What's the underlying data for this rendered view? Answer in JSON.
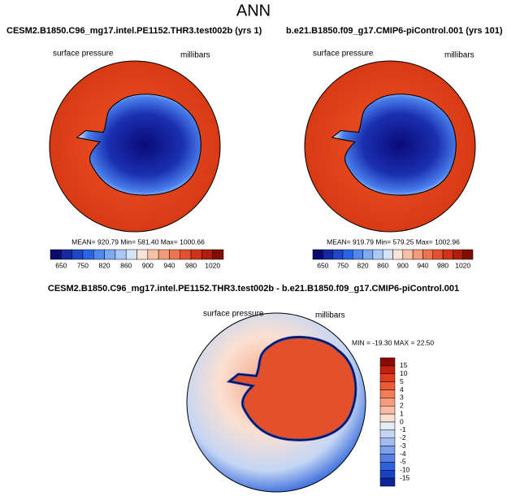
{
  "title": "ANN",
  "panels": [
    {
      "title": "CESM2.B1850.C96_mg17.intel.PE1152.THR3.test002b (yrs 1)",
      "variable": "surface pressure",
      "units": "millibars",
      "stats": "MEAN= 920.79 Min= 581.40 Max= 1000.66",
      "colorbar": {
        "labels": [
          650,
          750,
          820,
          860,
          900,
          940,
          980,
          1020
        ],
        "colors": [
          "#0a0a6e",
          "#1428a0",
          "#1e46c8",
          "#2a64e6",
          "#5088f0",
          "#7eaaf5",
          "#aac8f8",
          "#d6e4fa",
          "#fbe3d6",
          "#f8c0a6",
          "#f49a78",
          "#ee7450",
          "#e45030",
          "#cf3418",
          "#b01e0a",
          "#800c04"
        ]
      }
    },
    {
      "title": "b.e21.B1850.f09_g17.CMIP6-piControl.001 (yrs 101)",
      "variable": "surface pressure",
      "units": "millibars",
      "stats": "MEAN= 919.79 Min= 579.25 Max= 1002.96",
      "colorbar": {
        "labels": [
          650,
          750,
          820,
          860,
          900,
          940,
          980,
          1020
        ],
        "colors": [
          "#0a0a6e",
          "#1428a0",
          "#1e46c8",
          "#2a64e6",
          "#5088f0",
          "#7eaaf5",
          "#aac8f8",
          "#d6e4fa",
          "#fbe3d6",
          "#f8c0a6",
          "#f49a78",
          "#ee7450",
          "#e45030",
          "#cf3418",
          "#b01e0a",
          "#800c04"
        ]
      }
    },
    {
      "title": "CESM2.B1850.C96_mg17.intel.PE1152.THR3.test002b - b.e21.B1850.f09_g17.CMIP6-piControl.001",
      "variable": "surface pressure",
      "units": "millibars",
      "stats": "MIN = -19.30 MAX = 22.50",
      "colorbar": {
        "labels": [
          15,
          10,
          5,
          4,
          3,
          2,
          1,
          0,
          -1,
          -2,
          -3,
          -4,
          -5,
          -10,
          -15
        ],
        "colors": [
          "#8c0c04",
          "#c0200c",
          "#e03c1c",
          "#ec5c34",
          "#f27c54",
          "#f69c7c",
          "#f8bca4",
          "#fbe0d2",
          "#e4ecf8",
          "#c4d6f4",
          "#a0bcf0",
          "#7ca0ea",
          "#5680e4",
          "#3060dc",
          "#1a40c4",
          "#0c2496"
        ]
      }
    }
  ]
}
